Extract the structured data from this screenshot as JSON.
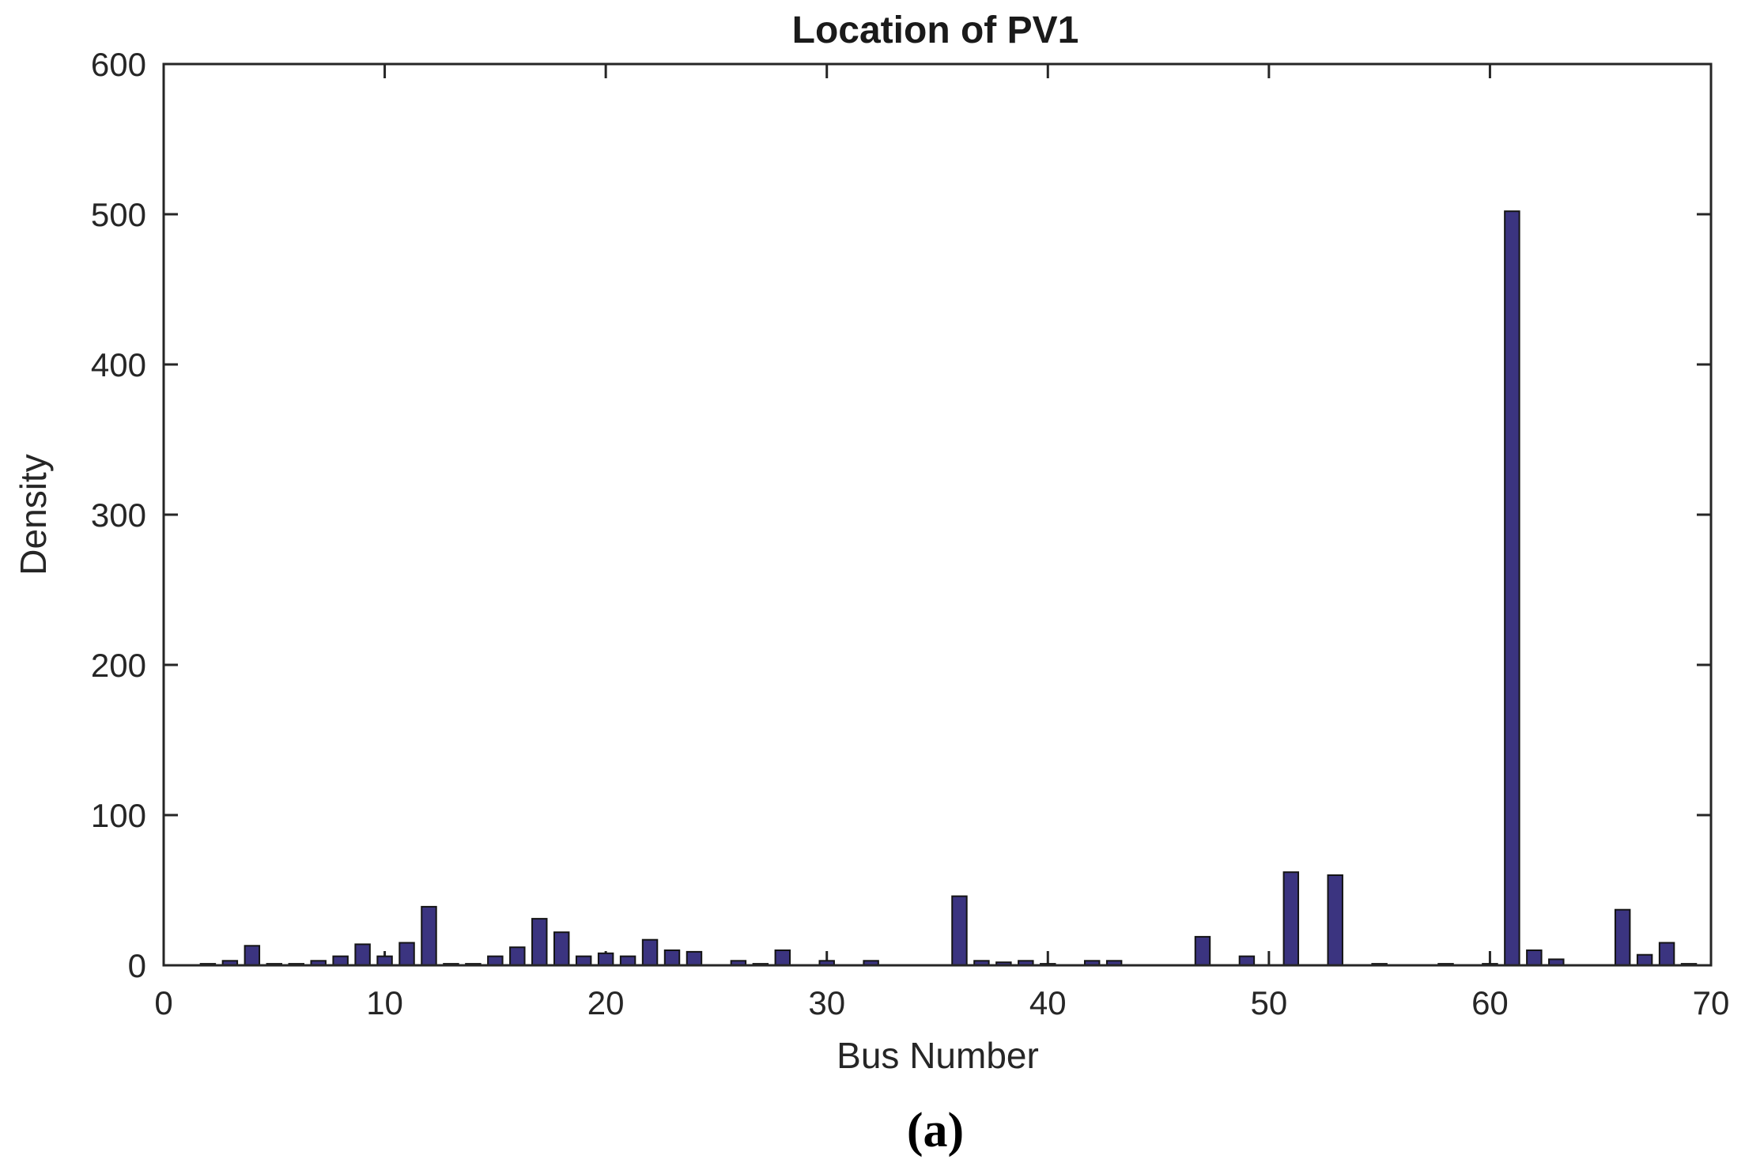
{
  "chart_data": {
    "type": "bar",
    "title": "Location of PV1",
    "xlabel": "Bus Number",
    "ylabel": "Density",
    "xlim": [
      0,
      70
    ],
    "ylim": [
      0,
      600
    ],
    "xticks": [
      "0",
      "10",
      "20",
      "30",
      "40",
      "50",
      "60",
      "70"
    ],
    "yticks": [
      "0",
      "100",
      "200",
      "300",
      "400",
      "500",
      "600"
    ],
    "grid": false,
    "bar_color": "#3b3480",
    "x": [
      2,
      3,
      4,
      5,
      6,
      7,
      8,
      9,
      10,
      11,
      12,
      13,
      14,
      15,
      16,
      17,
      18,
      19,
      20,
      21,
      22,
      23,
      24,
      26,
      27,
      28,
      30,
      32,
      36,
      37,
      38,
      39,
      40,
      42,
      43,
      47,
      49,
      51,
      53,
      55,
      58,
      60,
      61,
      62,
      63,
      66,
      67,
      68,
      69
    ],
    "values": [
      1,
      3,
      13,
      1,
      1,
      3,
      6,
      14,
      6,
      15,
      39,
      1,
      1,
      6,
      12,
      31,
      22,
      6,
      8,
      6,
      17,
      10,
      9,
      3,
      1,
      10,
      3,
      3,
      46,
      3,
      2,
      3,
      1,
      3,
      3,
      19,
      6,
      62,
      60,
      1,
      1,
      1,
      502,
      10,
      4,
      37,
      7,
      15,
      1
    ]
  },
  "caption": "(a)"
}
